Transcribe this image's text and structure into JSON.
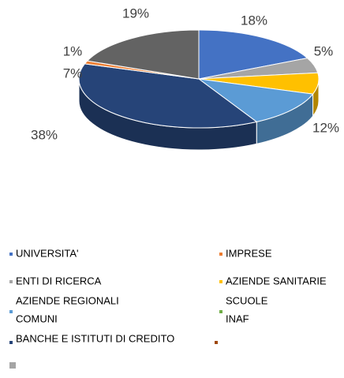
{
  "chart_data": {
    "type": "pie",
    "values": [
      18,
      5,
      7,
      12,
      38,
      1,
      19
    ],
    "value_labels": [
      "18%",
      "5%",
      "7%",
      "12%",
      "38%",
      "1%",
      "19%"
    ],
    "colors": [
      "#4472c4",
      "#a5a5a5",
      "#ffc000",
      "#5b9bd5",
      "#264478",
      "#ed7d31",
      "#636363"
    ],
    "legend": [
      {
        "lines": [
          "UNIVERSITA'"
        ],
        "color": "#4472c4"
      },
      {
        "lines": [
          "IMPRESE"
        ],
        "color": "#ed7d31"
      },
      {
        "lines": [
          "ENTI DI RICERCA"
        ],
        "color": "#a5a5a5"
      },
      {
        "lines": [
          "AZIENDE SANITARIE"
        ],
        "color": "#ffc000"
      },
      {
        "lines": [
          "AZIENDE REGIONALI",
          "COMUNI"
        ],
        "color": "#5b9bd5"
      },
      {
        "lines": [
          "SCUOLE",
          "INAF"
        ],
        "color": "#70ad47"
      },
      {
        "lines": [
          "BANCHE E ISTITUTI DI CREDITO"
        ],
        "color": "#264478"
      },
      {
        "lines": [],
        "color": "#9e480e"
      },
      {
        "lines": [],
        "color": "#a5a5a5"
      }
    ]
  }
}
